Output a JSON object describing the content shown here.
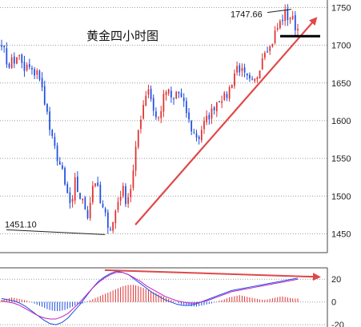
{
  "chart_data": [
    {
      "type": "candlestick",
      "title": "黄金四小时图",
      "ylim": [
        1425,
        1760
      ],
      "yticks": [
        1450,
        1500,
        1550,
        1600,
        1650,
        1700,
        1750
      ],
      "grid": true,
      "annotations": [
        {
          "label": "1747.66",
          "value": 1747.66
        },
        {
          "label": "1451.10",
          "value": 1451.1
        }
      ],
      "colors": {
        "up": "#e03030",
        "down": "#1f4fe0",
        "trendline": "#e04848",
        "resistance": "#000000"
      },
      "close_path": [
        1705,
        1688,
        1670,
        1682,
        1675,
        1690,
        1678,
        1664,
        1672,
        1668,
        1660,
        1671,
        1650,
        1638,
        1618,
        1590,
        1572,
        1558,
        1545,
        1532,
        1510,
        1498,
        1480,
        1520,
        1505,
        1495,
        1488,
        1475,
        1498,
        1525,
        1512,
        1490,
        1480,
        1468,
        1458,
        1465,
        1485,
        1500,
        1510,
        1495,
        1502,
        1520,
        1555,
        1590,
        1612,
        1632,
        1645,
        1628,
        1610,
        1598,
        1615,
        1632,
        1642,
        1630,
        1626,
        1640,
        1634,
        1622,
        1612,
        1596,
        1585,
        1580,
        1578,
        1592,
        1598,
        1606,
        1612,
        1622,
        1628,
        1632,
        1630,
        1636,
        1648,
        1662,
        1672,
        1668,
        1660,
        1655,
        1650,
        1648,
        1656,
        1672,
        1688,
        1700,
        1694,
        1705,
        1718,
        1726,
        1734,
        1742,
        1736,
        1738,
        1726,
        1722
      ],
      "trendline": [
        {
          "index": 42,
          "value": 1462
        },
        {
          "index": 93,
          "value": 1708
        }
      ],
      "resistance_line": {
        "value": 1712
      }
    },
    {
      "type": "bar",
      "title": "",
      "ylim": [
        -22,
        30
      ],
      "yticks": [
        20,
        0,
        -20
      ],
      "histogram_path": [
        2,
        3,
        4,
        3,
        2,
        1,
        -1,
        -3,
        -5,
        -7,
        -8,
        -8,
        -7,
        -5,
        -3,
        -2,
        0,
        2,
        4,
        6,
        8,
        10,
        12,
        14,
        15,
        15,
        14,
        12,
        10,
        8,
        6,
        4,
        2,
        0,
        -2,
        -3,
        -4,
        -4,
        -3,
        -2,
        -1,
        1,
        2,
        4,
        5,
        6,
        5,
        4,
        3,
        2,
        2,
        3,
        4,
        5,
        4,
        3,
        3
      ],
      "macd_path": [
        3,
        2,
        1,
        -1,
        -4,
        -8,
        -12,
        -16,
        -19,
        -20,
        -18,
        -14,
        -8,
        -2,
        5,
        12,
        18,
        22,
        25,
        27,
        26,
        24,
        20,
        16,
        12,
        8,
        5,
        2,
        0,
        -2,
        -3,
        -3,
        -2,
        0,
        2,
        4,
        6,
        8,
        10,
        11,
        12,
        13,
        14,
        15,
        16,
        17,
        18,
        19,
        20,
        21
      ],
      "signal_path": [
        1,
        0,
        -1,
        -3,
        -6,
        -9,
        -12,
        -14,
        -15,
        -15,
        -13,
        -10,
        -5,
        0,
        6,
        12,
        17,
        21,
        24,
        26,
        26,
        24,
        21,
        18,
        14,
        11,
        8,
        5,
        3,
        1,
        0,
        -1,
        -1,
        0,
        1,
        3,
        5,
        7,
        9,
        10,
        11,
        12,
        13,
        14,
        15,
        16,
        17,
        18,
        19,
        20
      ],
      "trendline": [
        {
          "index": 0.32,
          "value": 28
        },
        {
          "index": 0.985,
          "value": 22
        }
      ],
      "colors": {
        "positive": "#e03030",
        "negative": "#1f4fe0",
        "macd": "#1f4fe0",
        "signal": "#c020c0",
        "trendline": "#e04848"
      }
    }
  ]
}
